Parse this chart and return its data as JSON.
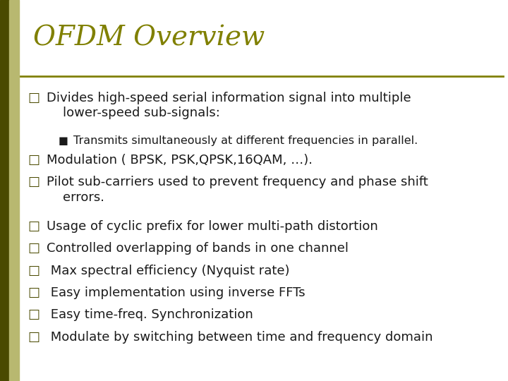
{
  "title": "OFDM Overview",
  "title_color": "#808000",
  "title_fontsize": 28,
  "background_color": "#ffffff",
  "line_color": "#808000",
  "text_color": "#1a1a1a",
  "bullet_color": "#4a4a00",
  "left_bar_color": "#4a4a00",
  "left_bar_light_color": "#b8b870",
  "bullet_char": "□",
  "sub_bullet_char": "■",
  "bullet_fontsize": 13,
  "sub_bullet_fontsize": 11.5,
  "bullets": [
    {
      "text": "Divides high-speed serial information signal into multiple\n    lower-speed sub-signals:",
      "lines": 2,
      "sub_bullets": [
        "Transmits simultaneously at different frequencies in parallel."
      ]
    },
    {
      "text": "Modulation ( BPSK, PSK,QPSK,16QAM, …).",
      "lines": 1,
      "sub_bullets": []
    },
    {
      "text": "Pilot sub-carriers used to prevent frequency and phase shift\n    errors.",
      "lines": 2,
      "sub_bullets": []
    },
    {
      "text": "Usage of cyclic prefix for lower multi-path distortion",
      "lines": 1,
      "sub_bullets": []
    },
    {
      "text": "Controlled overlapping of bands in one channel",
      "lines": 1,
      "sub_bullets": []
    },
    {
      "text": " Max spectral efficiency (Nyquist rate)",
      "lines": 1,
      "sub_bullets": []
    },
    {
      "text": " Easy implementation using inverse FFTs",
      "lines": 1,
      "sub_bullets": []
    },
    {
      "text": " Easy time-freq. Synchronization",
      "lines": 1,
      "sub_bullets": []
    },
    {
      "text": " Modulate by switching between time and frequency domain",
      "lines": 1,
      "sub_bullets": []
    }
  ]
}
